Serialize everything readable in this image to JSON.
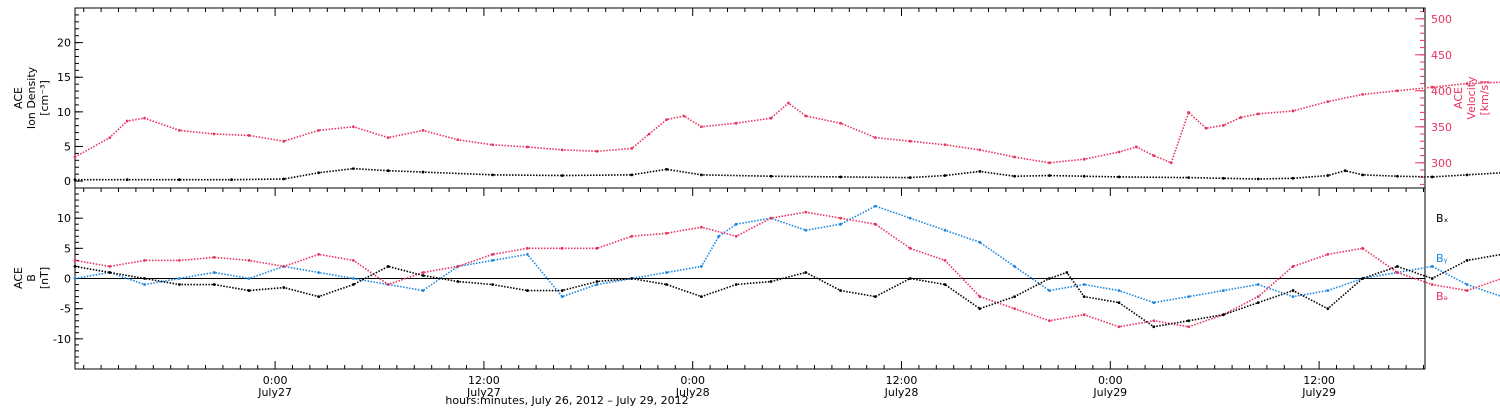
{
  "chart_data": [
    {
      "type": "scatter",
      "panel": "top",
      "left_axis_label": [
        "ACE",
        "Ion Density",
        "[cm⁻³]"
      ],
      "right_axis_label": [
        "ACE",
        "Velocity",
        "[km/s]"
      ],
      "left_ticks": [
        0,
        5,
        10,
        15,
        20
      ],
      "left_ylim": [
        -1,
        25
      ],
      "right_ticks": [
        300,
        350,
        400,
        450,
        500
      ],
      "right_ylim": [
        265,
        515
      ],
      "series": [
        {
          "name": "",
          "axis": "left",
          "color": "#000000",
          "points": [
            [
              0,
              0.2
            ],
            [
              3,
              0.2
            ],
            [
              6,
              0.2
            ],
            [
              9,
              0.2
            ],
            [
              12,
              0.3
            ],
            [
              14,
              1.2
            ],
            [
              16,
              1.8
            ],
            [
              18,
              1.5
            ],
            [
              20,
              1.3
            ],
            [
              24,
              0.9
            ],
            [
              28,
              0.8
            ],
            [
              32,
              0.9
            ],
            [
              34,
              1.7
            ],
            [
              36,
              0.9
            ],
            [
              40,
              0.7
            ],
            [
              44,
              0.6
            ],
            [
              48,
              0.5
            ],
            [
              50,
              0.8
            ],
            [
              52,
              1.4
            ],
            [
              54,
              0.7
            ],
            [
              56,
              0.8
            ],
            [
              58,
              0.7
            ],
            [
              60,
              0.6
            ],
            [
              64,
              0.5
            ],
            [
              66,
              0.4
            ],
            [
              68,
              0.3
            ],
            [
              70,
              0.4
            ],
            [
              72,
              0.8
            ],
            [
              73,
              1.5
            ],
            [
              74,
              0.9
            ],
            [
              76,
              0.7
            ],
            [
              78,
              0.6
            ],
            [
              80,
              0.9
            ],
            [
              82,
              1.2
            ],
            [
              84,
              1.0
            ],
            [
              86,
              1.8
            ],
            [
              88,
              2.4
            ],
            [
              89,
              1.7
            ],
            [
              89.5,
              1.2
            ]
          ]
        },
        {
          "name": "",
          "axis": "right",
          "color": "#e8335f",
          "points": [
            [
              0,
              308
            ],
            [
              2,
              335
            ],
            [
              3,
              358
            ],
            [
              4,
              362
            ],
            [
              6,
              345
            ],
            [
              8,
              340
            ],
            [
              10,
              338
            ],
            [
              12,
              330
            ],
            [
              14,
              345
            ],
            [
              16,
              350
            ],
            [
              18,
              335
            ],
            [
              20,
              345
            ],
            [
              22,
              332
            ],
            [
              24,
              325
            ],
            [
              26,
              322
            ],
            [
              28,
              318
            ],
            [
              30,
              316
            ],
            [
              32,
              320
            ],
            [
              33,
              340
            ],
            [
              34,
              360
            ],
            [
              35,
              365
            ],
            [
              36,
              350
            ],
            [
              38,
              355
            ],
            [
              40,
              362
            ],
            [
              41,
              383
            ],
            [
              42,
              365
            ],
            [
              44,
              355
            ],
            [
              46,
              335
            ],
            [
              48,
              330
            ],
            [
              50,
              325
            ],
            [
              52,
              318
            ],
            [
              54,
              308
            ],
            [
              56,
              300
            ],
            [
              58,
              305
            ],
            [
              60,
              315
            ],
            [
              61,
              322
            ],
            [
              62,
              310
            ],
            [
              63,
              300
            ],
            [
              64,
              370
            ],
            [
              65,
              348
            ],
            [
              66,
              352
            ],
            [
              67,
              363
            ],
            [
              68,
              368
            ],
            [
              70,
              372
            ],
            [
              72,
              385
            ],
            [
              74,
              395
            ],
            [
              76,
              400
            ],
            [
              78,
              405
            ],
            [
              80,
              410
            ],
            [
              82,
              412
            ],
            [
              84,
              420
            ],
            [
              85,
              425
            ],
            [
              86,
              418
            ],
            [
              87,
              412
            ],
            [
              88,
              405
            ],
            [
              89,
              410
            ],
            [
              89.5,
              415
            ]
          ]
        }
      ]
    },
    {
      "type": "scatter",
      "panel": "bottom",
      "left_axis_label": [
        "ACE",
        "B",
        "[nT]"
      ],
      "left_ticks": [
        -10,
        -5,
        0,
        5,
        10
      ],
      "left_ylim": [
        -15,
        15
      ],
      "series": [
        {
          "name": "Bx",
          "color": "#000000",
          "points": [
            [
              0,
              2
            ],
            [
              2,
              1
            ],
            [
              4,
              0
            ],
            [
              6,
              -1
            ],
            [
              8,
              -1
            ],
            [
              10,
              -2
            ],
            [
              12,
              -1.5
            ],
            [
              14,
              -3
            ],
            [
              16,
              -1
            ],
            [
              18,
              2
            ],
            [
              20,
              0.5
            ],
            [
              22,
              -0.5
            ],
            [
              24,
              -1
            ],
            [
              26,
              -2
            ],
            [
              28,
              -2
            ],
            [
              30,
              -0.5
            ],
            [
              32,
              0
            ],
            [
              34,
              -1
            ],
            [
              36,
              -3
            ],
            [
              38,
              -1
            ],
            [
              40,
              -0.5
            ],
            [
              42,
              1
            ],
            [
              44,
              -2
            ],
            [
              46,
              -3
            ],
            [
              48,
              0
            ],
            [
              50,
              -1
            ],
            [
              52,
              -5
            ],
            [
              54,
              -3
            ],
            [
              56,
              0
            ],
            [
              57,
              1
            ],
            [
              58,
              -3
            ],
            [
              60,
              -4
            ],
            [
              62,
              -8
            ],
            [
              64,
              -7
            ],
            [
              66,
              -6
            ],
            [
              68,
              -4
            ],
            [
              70,
              -2
            ],
            [
              72,
              -5
            ],
            [
              74,
              0
            ],
            [
              76,
              2
            ],
            [
              78,
              0
            ],
            [
              80,
              3
            ],
            [
              82,
              4
            ],
            [
              84,
              2
            ],
            [
              86,
              3
            ],
            [
              88,
              4
            ],
            [
              89.5,
              5
            ]
          ]
        },
        {
          "name": "By",
          "color": "#1b86e0",
          "points": [
            [
              0,
              0
            ],
            [
              2,
              1
            ],
            [
              4,
              -1
            ],
            [
              6,
              0
            ],
            [
              8,
              1
            ],
            [
              10,
              0
            ],
            [
              12,
              2
            ],
            [
              14,
              1
            ],
            [
              16,
              0
            ],
            [
              18,
              -1
            ],
            [
              20,
              -2
            ],
            [
              22,
              2
            ],
            [
              24,
              3
            ],
            [
              26,
              4
            ],
            [
              28,
              -3
            ],
            [
              30,
              -1
            ],
            [
              32,
              0
            ],
            [
              34,
              1
            ],
            [
              36,
              2
            ],
            [
              37,
              7
            ],
            [
              38,
              9
            ],
            [
              40,
              10
            ],
            [
              42,
              8
            ],
            [
              44,
              9
            ],
            [
              46,
              12
            ],
            [
              48,
              10
            ],
            [
              50,
              8
            ],
            [
              52,
              6
            ],
            [
              54,
              2
            ],
            [
              56,
              -2
            ],
            [
              58,
              -1
            ],
            [
              60,
              -2
            ],
            [
              62,
              -4
            ],
            [
              64,
              -3
            ],
            [
              66,
              -2
            ],
            [
              68,
              -1
            ],
            [
              70,
              -3
            ],
            [
              72,
              -2
            ],
            [
              74,
              0
            ],
            [
              76,
              1
            ],
            [
              78,
              2
            ],
            [
              80,
              -1
            ],
            [
              82,
              -3
            ],
            [
              84,
              -4
            ],
            [
              86,
              -3
            ],
            [
              88,
              -2
            ],
            [
              89.5,
              -3
            ]
          ]
        },
        {
          "name": "Bz",
          "color": "#e8335f",
          "points": [
            [
              0,
              3
            ],
            [
              2,
              2
            ],
            [
              4,
              3
            ],
            [
              6,
              3
            ],
            [
              8,
              3.5
            ],
            [
              10,
              3
            ],
            [
              12,
              2
            ],
            [
              14,
              4
            ],
            [
              16,
              3
            ],
            [
              18,
              -1
            ],
            [
              20,
              1
            ],
            [
              22,
              2
            ],
            [
              24,
              4
            ],
            [
              26,
              5
            ],
            [
              28,
              5
            ],
            [
              30,
              5
            ],
            [
              32,
              7
            ],
            [
              34,
              7.5
            ],
            [
              36,
              8.5
            ],
            [
              38,
              7
            ],
            [
              40,
              10
            ],
            [
              42,
              11
            ],
            [
              44,
              10
            ],
            [
              46,
              9
            ],
            [
              48,
              5
            ],
            [
              50,
              3
            ],
            [
              52,
              -3
            ],
            [
              54,
              -5
            ],
            [
              56,
              -7
            ],
            [
              58,
              -6
            ],
            [
              60,
              -8
            ],
            [
              62,
              -7
            ],
            [
              64,
              -8
            ],
            [
              66,
              -6
            ],
            [
              68,
              -3
            ],
            [
              70,
              2
            ],
            [
              72,
              4
            ],
            [
              74,
              5
            ],
            [
              76,
              1
            ],
            [
              78,
              -1
            ],
            [
              80,
              -2
            ],
            [
              82,
              0
            ],
            [
              84,
              2
            ],
            [
              86,
              5
            ],
            [
              88,
              3
            ],
            [
              89.5,
              4
            ]
          ]
        }
      ],
      "legend": [
        "Bₓ",
        "Bᵧ",
        "Bₔ"
      ]
    }
  ],
  "x_axis": {
    "ticks": [
      {
        "time": "0:00",
        "date": "July27"
      },
      {
        "time": "12:00",
        "date": "July27"
      },
      {
        "time": "0:00",
        "date": "July28"
      },
      {
        "time": "12:00",
        "date": "July28"
      },
      {
        "time": "0:00",
        "date": "July29"
      },
      {
        "time": "12:00",
        "date": "July29"
      }
    ],
    "label": "hours:minutes, July 26, 2012 – July 29, 2012"
  }
}
